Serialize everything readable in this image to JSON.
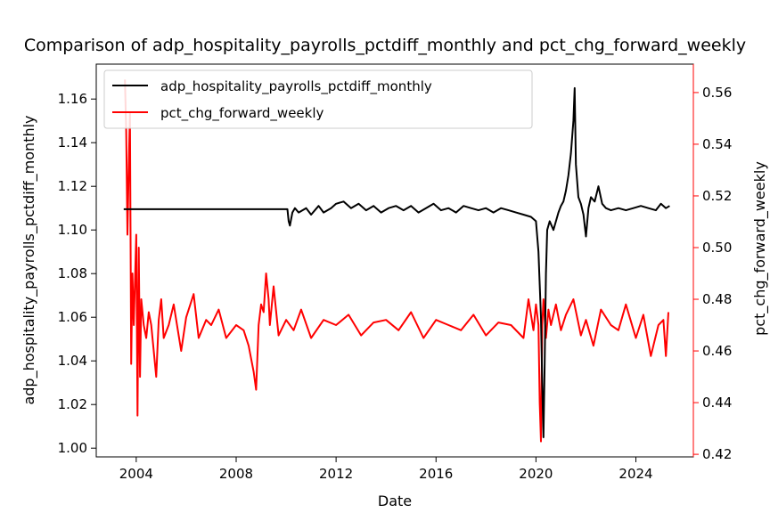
{
  "chart_data": {
    "type": "line",
    "title": "Comparison of adp_hospitality_payrolls_pctdiff_monthly and pct_chg_forward_weekly",
    "xlabel": "Date",
    "ylabel_left": "adp_hospitality_payrolls_pctdiff_monthly",
    "ylabel_right": "pct_chg_forward_weekly",
    "xlim": [
      2002.4,
      2026.3
    ],
    "ylim_left": [
      0.996,
      1.176
    ],
    "ylim_right": [
      0.419,
      0.571
    ],
    "x_ticks": [
      2004,
      2008,
      2012,
      2016,
      2020,
      2024
    ],
    "x_tick_labels": [
      "2004",
      "2008",
      "2012",
      "2016",
      "2020",
      "2024"
    ],
    "y_left_ticks": [
      1.0,
      1.02,
      1.04,
      1.06,
      1.08,
      1.1,
      1.12,
      1.14,
      1.16
    ],
    "y_left_tick_labels": [
      "1.00",
      "1.02",
      "1.04",
      "1.06",
      "1.08",
      "1.10",
      "1.12",
      "1.14",
      "1.16"
    ],
    "y_right_ticks": [
      0.42,
      0.44,
      0.46,
      0.48,
      0.5,
      0.52,
      0.54,
      0.56
    ],
    "y_right_tick_labels": [
      "0.42",
      "0.44",
      "0.46",
      "0.48",
      "0.50",
      "0.52",
      "0.54",
      "0.56"
    ],
    "grid": false,
    "legend": "upper-left",
    "series": [
      {
        "name": "adp_hospitality_payrolls_pctdiff_monthly",
        "axis": "left",
        "color": "#000000",
        "x": [
          2003.5,
          2005.0,
          2007.0,
          2009.0,
          2010.05,
          2010.1,
          2010.15,
          2010.25,
          2010.35,
          2010.5,
          2010.8,
          2011.0,
          2011.3,
          2011.5,
          2011.8,
          2012.0,
          2012.3,
          2012.6,
          2012.9,
          2013.2,
          2013.5,
          2013.8,
          2014.1,
          2014.4,
          2014.7,
          2015.0,
          2015.3,
          2015.6,
          2015.9,
          2016.2,
          2016.5,
          2016.8,
          2017.1,
          2017.4,
          2017.7,
          2018.0,
          2018.3,
          2018.6,
          2018.9,
          2019.2,
          2019.5,
          2019.8,
          2020.0,
          2020.1,
          2020.2,
          2020.25,
          2020.3,
          2020.35,
          2020.4,
          2020.45,
          2020.55,
          2020.7,
          2020.9,
          2021.0,
          2021.1,
          2021.2,
          2021.3,
          2021.4,
          2021.5,
          2021.55,
          2021.6,
          2021.7,
          2021.8,
          2021.9,
          2022.0,
          2022.1,
          2022.2,
          2022.35,
          2022.5,
          2022.65,
          2022.8,
          2023.0,
          2023.3,
          2023.6,
          2023.9,
          2024.2,
          2024.5,
          2024.8,
          2025.0,
          2025.2,
          2025.35
        ],
        "values": [
          1.1095,
          1.1095,
          1.1095,
          1.1095,
          1.1095,
          1.104,
          1.102,
          1.108,
          1.11,
          1.108,
          1.11,
          1.107,
          1.111,
          1.108,
          1.11,
          1.112,
          1.113,
          1.11,
          1.112,
          1.109,
          1.111,
          1.108,
          1.11,
          1.111,
          1.109,
          1.111,
          1.108,
          1.11,
          1.112,
          1.109,
          1.11,
          1.108,
          1.111,
          1.11,
          1.109,
          1.11,
          1.108,
          1.11,
          1.109,
          1.108,
          1.107,
          1.106,
          1.104,
          1.09,
          1.06,
          1.03,
          1.005,
          1.04,
          1.08,
          1.1,
          1.104,
          1.1,
          1.108,
          1.111,
          1.113,
          1.118,
          1.125,
          1.135,
          1.15,
          1.165,
          1.13,
          1.115,
          1.112,
          1.107,
          1.097,
          1.11,
          1.115,
          1.113,
          1.12,
          1.112,
          1.11,
          1.109,
          1.11,
          1.109,
          1.11,
          1.111,
          1.11,
          1.109,
          1.112,
          1.11,
          1.111
        ]
      },
      {
        "name": "pct_chg_forward_weekly",
        "axis": "right",
        "color": "#ff0000",
        "x": [
          2003.55,
          2003.6,
          2003.65,
          2003.7,
          2003.75,
          2003.8,
          2003.85,
          2003.9,
          2004.0,
          2004.05,
          2004.1,
          2004.15,
          2004.2,
          2004.3,
          2004.4,
          2004.5,
          2004.6,
          2004.7,
          2004.8,
          2004.9,
          2005.0,
          2005.1,
          2005.3,
          2005.5,
          2005.8,
          2006.0,
          2006.3,
          2006.5,
          2006.8,
          2007.0,
          2007.3,
          2007.6,
          2008.0,
          2008.3,
          2008.5,
          2008.7,
          2008.8,
          2008.9,
          2009.0,
          2009.1,
          2009.2,
          2009.3,
          2009.35,
          2009.5,
          2009.7,
          2010.0,
          2010.3,
          2010.6,
          2011.0,
          2011.5,
          2012.0,
          2012.5,
          2013.0,
          2013.5,
          2014.0,
          2014.5,
          2015.0,
          2015.5,
          2016.0,
          2016.5,
          2017.0,
          2017.5,
          2018.0,
          2018.5,
          2019.0,
          2019.5,
          2019.7,
          2019.9,
          2020.0,
          2020.1,
          2020.15,
          2020.2,
          2020.25,
          2020.3,
          2020.4,
          2020.5,
          2020.6,
          2020.8,
          2021.0,
          2021.2,
          2021.5,
          2021.8,
          2022.0,
          2022.3,
          2022.6,
          2023.0,
          2023.3,
          2023.6,
          2024.0,
          2024.3,
          2024.6,
          2024.9,
          2025.1,
          2025.2,
          2025.3
        ],
        "values": [
          0.565,
          0.545,
          0.505,
          0.53,
          0.552,
          0.455,
          0.49,
          0.47,
          0.505,
          0.435,
          0.5,
          0.45,
          0.48,
          0.47,
          0.465,
          0.475,
          0.47,
          0.46,
          0.45,
          0.472,
          0.48,
          0.465,
          0.47,
          0.478,
          0.46,
          0.473,
          0.482,
          0.465,
          0.472,
          0.47,
          0.476,
          0.465,
          0.47,
          0.468,
          0.462,
          0.452,
          0.445,
          0.47,
          0.478,
          0.475,
          0.49,
          0.48,
          0.47,
          0.485,
          0.466,
          0.472,
          0.468,
          0.476,
          0.465,
          0.472,
          0.47,
          0.474,
          0.466,
          0.471,
          0.472,
          0.468,
          0.475,
          0.465,
          0.472,
          0.47,
          0.468,
          0.474,
          0.466,
          0.471,
          0.47,
          0.465,
          0.48,
          0.468,
          0.478,
          0.47,
          0.44,
          0.425,
          0.47,
          0.48,
          0.465,
          0.476,
          0.47,
          0.478,
          0.468,
          0.474,
          0.48,
          0.466,
          0.472,
          0.462,
          0.476,
          0.47,
          0.468,
          0.478,
          0.465,
          0.474,
          0.458,
          0.47,
          0.472,
          0.458,
          0.475
        ]
      }
    ]
  }
}
